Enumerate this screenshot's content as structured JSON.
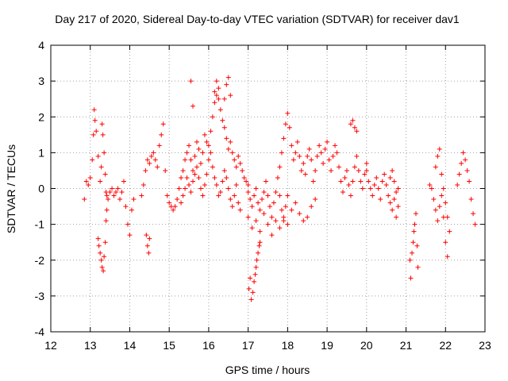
{
  "chart_data": {
    "type": "scatter",
    "title": "Day 217 of 2020, Sidereal Day-to-day VTEC variation (SDTVAR) for receiver dav1",
    "xlabel": "GPS time / hours",
    "ylabel": "SDTVAR / TECUs",
    "xlim": [
      12,
      23
    ],
    "ylim": [
      -4,
      4
    ],
    "xticks": [
      "12",
      "13",
      "14",
      "15",
      "16",
      "17",
      "18",
      "19",
      "20",
      "21",
      "22",
      "23"
    ],
    "yticks": [
      "-4",
      "-3",
      "-2",
      "-1",
      "0",
      "1",
      "2",
      "3",
      "4"
    ],
    "grid": true,
    "marker": "+",
    "color": "#ff0000",
    "series": [
      {
        "name": "dav1",
        "x": [
          12.85,
          12.9,
          12.95,
          13.0,
          13.05,
          13.08,
          13.1,
          13.12,
          13.15,
          13.2,
          13.25,
          13.28,
          13.3,
          13.32,
          13.35,
          13.38,
          13.4,
          13.42,
          13.45,
          13.5,
          13.55,
          13.6,
          13.65,
          13.7,
          13.75,
          13.8,
          13.85,
          13.9,
          13.95,
          14.0,
          14.05,
          14.1,
          13.2,
          13.22,
          13.25,
          13.28,
          13.3,
          13.33,
          13.35,
          13.38,
          13.4,
          13.42,
          14.3,
          14.35,
          14.4,
          14.45,
          14.5,
          14.55,
          14.6,
          14.65,
          14.7,
          14.75,
          14.8,
          14.85,
          14.9,
          14.95,
          15.0,
          15.05,
          15.1,
          15.15,
          15.2,
          14.42,
          14.45,
          14.48,
          14.5,
          15.25,
          15.3,
          15.35,
          15.4,
          15.45,
          15.5,
          15.55,
          15.6,
          15.65,
          15.7,
          15.75,
          15.8,
          15.85,
          15.9,
          15.95,
          16.0,
          16.05,
          16.1,
          16.15,
          16.2,
          16.25,
          16.3,
          16.35,
          16.4,
          16.45,
          16.5,
          16.55,
          16.6,
          16.65,
          16.7,
          16.75,
          16.8,
          16.85,
          16.9,
          16.95,
          17.0,
          15.3,
          15.35,
          15.4,
          15.45,
          15.5,
          15.55,
          15.6,
          15.65,
          15.7,
          15.75,
          15.8,
          15.85,
          15.9,
          15.95,
          16.0,
          16.05,
          16.1,
          16.15,
          16.2,
          16.25,
          16.3,
          16.35,
          16.4,
          16.45,
          16.5,
          16.55,
          16.6,
          16.65,
          16.7,
          16.75,
          16.8,
          15.55,
          15.6,
          16.15,
          16.2,
          16.25,
          16.4,
          16.45,
          16.5,
          16.55,
          17.0,
          17.05,
          17.1,
          17.15,
          17.2,
          17.25,
          17.3,
          17.35,
          17.4,
          17.45,
          17.5,
          17.55,
          17.6,
          17.65,
          17.7,
          17.75,
          17.8,
          17.85,
          17.9,
          17.95,
          18.0,
          17.02,
          17.05,
          17.08,
          17.12,
          17.15,
          17.18,
          17.2,
          17.22,
          17.25,
          17.28,
          17.3,
          17.0,
          17.1,
          17.2,
          17.3,
          17.4,
          17.5,
          17.6,
          17.7,
          17.8,
          17.9,
          18.0,
          18.1,
          18.2,
          18.3,
          18.4,
          18.5,
          18.6,
          18.7,
          17.8,
          17.85,
          17.9,
          17.95,
          18.0,
          18.05,
          18.1,
          18.15,
          18.2,
          18.25,
          18.3,
          18.35,
          18.4,
          18.45,
          18.5,
          18.55,
          18.6,
          18.65,
          18.7,
          18.75,
          18.8,
          18.85,
          18.9,
          18.95,
          19.0,
          19.05,
          19.1,
          19.15,
          19.2,
          19.25,
          19.3,
          19.35,
          19.4,
          19.45,
          19.5,
          19.55,
          19.6,
          19.65,
          19.7,
          19.75,
          19.8,
          19.85,
          19.9,
          19.95,
          20.0,
          19.6,
          19.65,
          19.7,
          19.75,
          20.0,
          20.05,
          20.1,
          20.15,
          20.2,
          20.25,
          20.3,
          20.35,
          20.4,
          20.45,
          20.5,
          20.55,
          20.6,
          20.65,
          20.7,
          20.75,
          20.8,
          20.6,
          20.65,
          20.7,
          20.75,
          20.8,
          21.1,
          21.12,
          21.15,
          21.18,
          21.2,
          21.22,
          21.25,
          21.28,
          21.3,
          21.6,
          21.65,
          21.7,
          21.75,
          21.8,
          21.85,
          21.9,
          21.95,
          22.0,
          22.05,
          22.1,
          21.75,
          21.8,
          21.85,
          21.9,
          21.95,
          22.0,
          22.05,
          22.3,
          22.35,
          22.4,
          22.45,
          22.5,
          22.55,
          22.6,
          22.65,
          22.7,
          22.75
        ],
        "y": [
          -0.3,
          0.2,
          0.1,
          0.3,
          0.8,
          1.5,
          2.2,
          1.9,
          1.6,
          0.9,
          0.2,
          0.6,
          1.8,
          1.5,
          1.0,
          0.4,
          -0.1,
          -0.2,
          -0.3,
          -0.1,
          0.0,
          -0.2,
          -0.1,
          0.0,
          -0.3,
          -0.1,
          0.2,
          -0.5,
          -1.0,
          -1.3,
          -0.6,
          -0.3,
          -1.4,
          -1.6,
          -1.8,
          -2.0,
          -2.2,
          -2.3,
          -1.9,
          -1.5,
          -0.9,
          -0.6,
          -0.2,
          0.1,
          0.5,
          0.8,
          0.7,
          0.9,
          1.0,
          0.8,
          0.6,
          1.2,
          1.5,
          1.8,
          0.5,
          -0.2,
          -0.4,
          -0.5,
          -0.6,
          -0.5,
          -0.3,
          -1.3,
          -1.6,
          -1.8,
          -1.4,
          0.0,
          0.3,
          0.5,
          0.8,
          1.0,
          1.2,
          0.8,
          0.5,
          0.9,
          1.3,
          1.1,
          0.7,
          1.0,
          1.5,
          1.3,
          1.2,
          1.6,
          2.0,
          2.4,
          2.6,
          2.5,
          2.2,
          1.9,
          1.7,
          1.4,
          1.1,
          1.3,
          1.0,
          0.8,
          0.6,
          0.9,
          0.7,
          0.5,
          0.3,
          0.2,
          0.1,
          -0.4,
          -0.2,
          0.0,
          0.3,
          0.1,
          -0.1,
          0.2,
          0.4,
          0.6,
          0.3,
          0.0,
          -0.2,
          0.1,
          0.4,
          0.8,
          1.0,
          0.6,
          0.3,
          0.1,
          -0.2,
          -0.1,
          0.2,
          0.5,
          0.3,
          0.0,
          -0.3,
          -0.5,
          -0.2,
          0.1,
          -0.4,
          -0.6,
          3.0,
          2.3,
          2.7,
          3.0,
          2.8,
          2.5,
          2.9,
          3.1,
          2.6,
          -0.1,
          -0.3,
          -0.5,
          -0.2,
          0.0,
          -0.4,
          -0.6,
          -0.3,
          -0.1,
          0.2,
          -0.2,
          -0.5,
          -0.8,
          -0.4,
          -0.1,
          0.3,
          -0.2,
          -0.6,
          -0.9,
          -0.5,
          -0.2,
          -2.8,
          -2.5,
          -3.1,
          -2.9,
          -2.6,
          -2.4,
          -2.2,
          -2.0,
          -1.8,
          -1.6,
          -1.5,
          -0.8,
          -1.1,
          -0.9,
          -1.2,
          -0.7,
          -1.0,
          -1.3,
          -0.9,
          -1.1,
          -0.8,
          -1.0,
          -0.6,
          -0.4,
          -0.7,
          -0.9,
          -0.8,
          -0.5,
          -0.3,
          0.6,
          1.0,
          1.4,
          1.8,
          2.1,
          1.7,
          1.2,
          0.8,
          1.0,
          1.3,
          0.9,
          0.5,
          0.7,
          0.4,
          0.9,
          1.1,
          0.8,
          0.2,
          0.5,
          0.9,
          1.2,
          1.0,
          0.7,
          1.1,
          1.3,
          0.8,
          0.5,
          0.9,
          1.2,
          1.0,
          0.6,
          0.2,
          -0.1,
          0.3,
          0.5,
          0.1,
          -0.2,
          0.2,
          0.6,
          0.9,
          0.5,
          0.2,
          0.0,
          0.4,
          0.7,
          1.8,
          1.9,
          1.7,
          1.6,
          0.5,
          0.2,
          0.0,
          -0.2,
          0.1,
          0.3,
          0.0,
          -0.3,
          0.2,
          0.4,
          0.1,
          -0.2,
          0.3,
          0.5,
          0.2,
          -0.1,
          0.0,
          -0.4,
          -0.6,
          -0.3,
          -0.8,
          -0.5,
          -2.0,
          -2.5,
          -1.8,
          -1.5,
          -1.2,
          -1.0,
          -0.7,
          -1.6,
          -2.2,
          0.1,
          0.0,
          -0.3,
          -0.6,
          -0.9,
          -0.5,
          -0.2,
          0.0,
          -0.4,
          -0.8,
          -1.2,
          0.6,
          0.9,
          1.1,
          0.4,
          -0.8,
          -1.5,
          -1.9,
          0.1,
          0.4,
          0.7,
          1.0,
          0.8,
          0.5,
          0.2,
          -0.3,
          -0.7,
          -1.0
        ]
      }
    ]
  }
}
